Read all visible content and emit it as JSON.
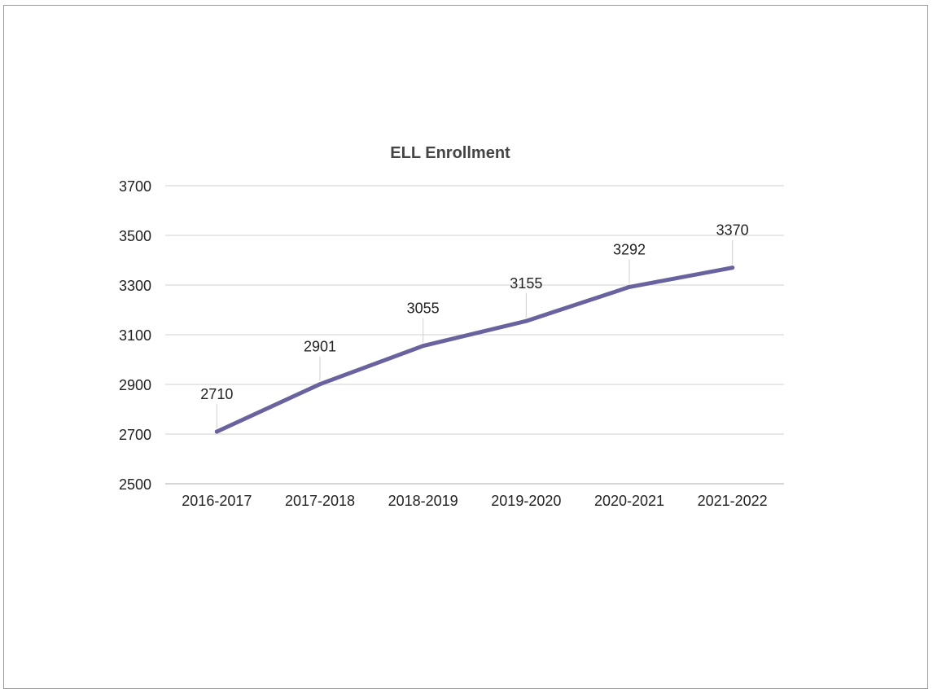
{
  "chart_data": {
    "type": "line",
    "title": "ELL Enrollment",
    "xlabel": "",
    "ylabel": "",
    "categories": [
      "2016-2017",
      "2017-2018",
      "2018-2019",
      "2019-2020",
      "2020-2021",
      "2021-2022"
    ],
    "series": [
      {
        "values": [
          2710,
          2901,
          3055,
          3155,
          3292,
          3370
        ]
      }
    ],
    "data_labels": [
      "2710",
      "2901",
      "3055",
      "3155",
      "3292",
      "3370"
    ],
    "ylim": [
      2500,
      3700
    ],
    "yticks": [
      2500,
      2700,
      2900,
      3100,
      3300,
      3500,
      3700
    ],
    "ytick_labels": [
      "2500",
      "2700",
      "2900",
      "3100",
      "3300",
      "3500",
      "3700"
    ],
    "grid": true,
    "legend": "none",
    "colors": {
      "line": "#68639f",
      "grid": "#d9d9d9",
      "text": "#222222",
      "title": "#444444"
    }
  }
}
